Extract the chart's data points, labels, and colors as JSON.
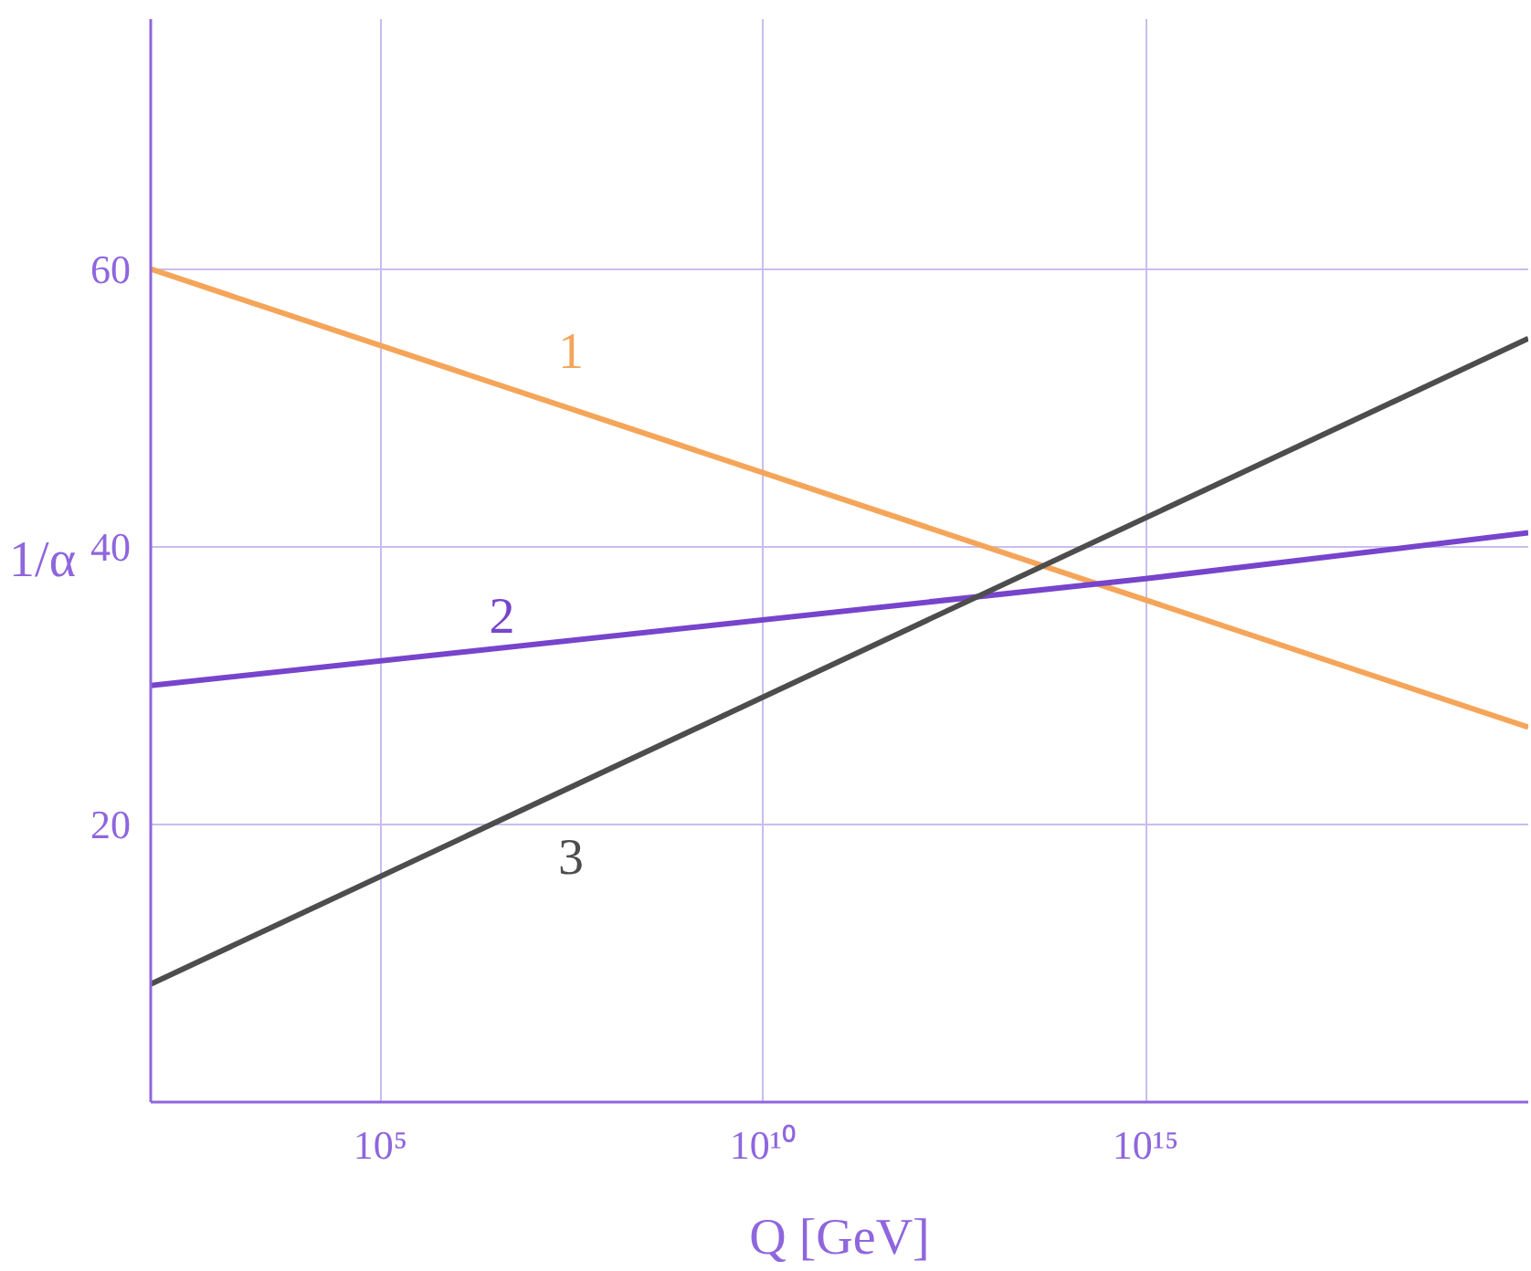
{
  "chart_data": {
    "type": "line",
    "xlabel": "Q [GeV]",
    "ylabel": "1/α",
    "log": "x",
    "xlim": [
      100,
      1e+20
    ],
    "ylim": [
      0,
      78
    ],
    "xticks": [
      {
        "value": 100000.0,
        "label": "10⁵"
      },
      {
        "value": 10000000000.0,
        "label": "10¹⁰"
      },
      {
        "value": 1000000000000000.0,
        "label": "10¹⁵"
      }
    ],
    "yticks": [
      20,
      40,
      60
    ],
    "grid": true,
    "marker": "none",
    "line_style": "solid",
    "series": [
      {
        "name": "1",
        "color": "#f5a55a",
        "x": [
          100,
          1e+20
        ],
        "values": [
          60,
          27
        ]
      },
      {
        "name": "2",
        "color": "#7744cc",
        "x": [
          100,
          1000000000000000.0,
          1e+20
        ],
        "values": [
          30,
          37.7,
          41
        ]
      },
      {
        "name": "3",
        "color": "#4d4d4d",
        "x": [
          100,
          1e+20
        ],
        "values": [
          8.5,
          55
        ]
      }
    ]
  }
}
